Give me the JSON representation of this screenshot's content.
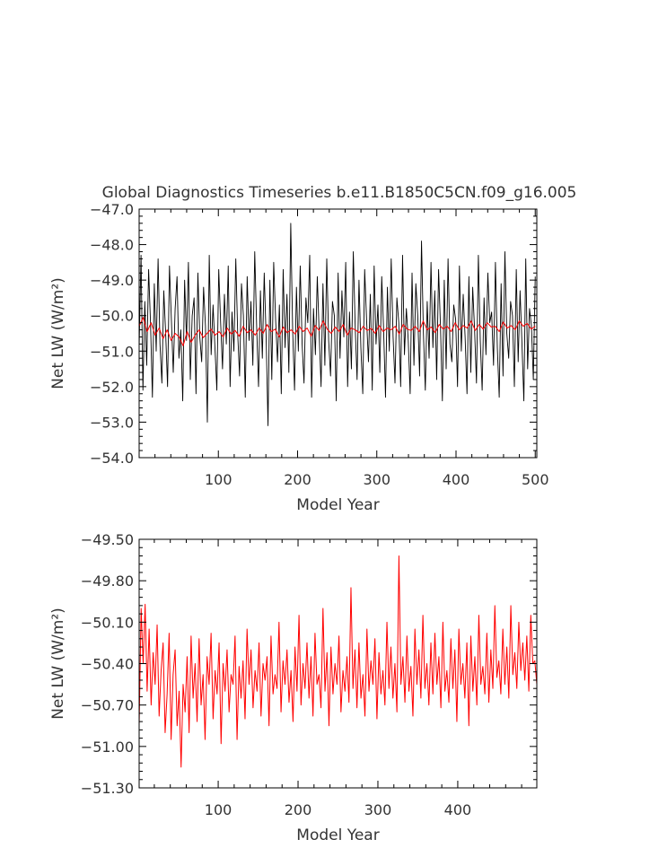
{
  "figure": {
    "title": "Global Diagnostics Timeseries b.e11.B1850C5CN.f09_g16.005"
  },
  "chart_data": [
    {
      "type": "line",
      "title": "Global Diagnostics Timeseries b.e11.B1850C5CN.f09_g16.005",
      "xlabel": "Model Year",
      "ylabel": "Net LW (W/m²)",
      "xlim": [
        0,
        502
      ],
      "ylim": [
        -54.0,
        -47.0
      ],
      "xticks": [
        100,
        200,
        300,
        400,
        500
      ],
      "xtick_labels": [
        "100",
        "200",
        "300",
        "400",
        "500"
      ],
      "yticks": [
        -54.0,
        -53.0,
        -52.0,
        -51.0,
        -50.0,
        -49.0,
        -48.0,
        -47.0
      ],
      "ytick_labels": [
        "−54.0",
        "−53.0",
        "−52.0",
        "−51.0",
        "−50.0",
        "−49.0",
        "−48.0",
        "−47.0"
      ],
      "grid": false,
      "legend": "none",
      "series": [
        {
          "color": "#000000",
          "kind": "monthly",
          "x_start": 0,
          "x_end": 500,
          "typical_range": [
            -52.2,
            -48.2
          ],
          "extremes": [
            -53.1,
            -47.4
          ],
          "values": [
            -50.9,
            -48.3,
            -52.1,
            -49.6,
            -51.4,
            -48.7,
            -50.2,
            -52.3,
            -49.1,
            -51.0,
            -48.4,
            -50.8,
            -51.9,
            -49.3,
            -50.5,
            -52.0,
            -48.6,
            -50.1,
            -51.6,
            -49.8,
            -48.9,
            -51.2,
            -50.4,
            -52.4,
            -49.0,
            -50.7,
            -48.5,
            -51.8,
            -50.0,
            -49.5,
            -52.2,
            -48.8,
            -50.6,
            -51.3,
            -49.2,
            -50.3,
            -53.0,
            -48.3,
            -51.1,
            -49.7,
            -50.9,
            -52.1,
            -48.7,
            -50.2,
            -51.5,
            -49.4,
            -50.8,
            -48.6,
            -52.0,
            -49.9,
            -51.0,
            -48.4,
            -50.5,
            -51.7,
            -49.1,
            -50.0,
            -52.3,
            -48.9,
            -50.7,
            -49.6,
            -51.4,
            -48.2,
            -50.3,
            -52.0,
            -49.3,
            -51.2,
            -48.8,
            -50.6,
            -53.1,
            -49.0,
            -51.8,
            -48.5,
            -50.1,
            -51.3,
            -49.7,
            -52.2,
            -48.7,
            -50.9,
            -49.4,
            -51.6,
            -47.4,
            -50.4,
            -52.1,
            -49.2,
            -51.0,
            -48.6,
            -50.8,
            -51.9,
            -49.5,
            -50.2,
            -48.3,
            -52.3,
            -49.8,
            -51.1,
            -48.9,
            -50.5,
            -52.0,
            -49.1,
            -51.4,
            -48.4,
            -50.7,
            -51.7,
            -49.6,
            -50.0,
            -52.4,
            -48.8,
            -51.2,
            -49.3,
            -50.6,
            -48.5,
            -52.0,
            -49.9,
            -51.5,
            -48.2,
            -50.3,
            -51.8,
            -49.0,
            -50.9,
            -52.2,
            -48.7,
            -50.1,
            -51.3,
            -49.4,
            -52.1,
            -48.6,
            -50.8,
            -49.7,
            -51.6,
            -48.9,
            -50.4,
            -52.3,
            -49.2,
            -51.0,
            -48.4,
            -50.6,
            -51.9,
            -49.5,
            -50.2,
            -52.0,
            -48.3,
            -51.1,
            -49.8,
            -50.7,
            -52.2,
            -48.8,
            -51.4,
            -49.1,
            -50.0,
            -51.7,
            -47.9,
            -50.5,
            -52.1,
            -49.6,
            -51.2,
            -48.5,
            -50.9,
            -49.3,
            -51.8,
            -48.7,
            -50.3,
            -52.4,
            -49.0,
            -51.5,
            -48.4,
            -50.8,
            -51.3,
            -49.7,
            -50.1,
            -52.0,
            -48.6,
            -51.0,
            -49.4,
            -50.6,
            -52.2,
            -48.9,
            -51.6,
            -49.2,
            -50.4,
            -51.9,
            -48.3,
            -50.7,
            -52.1,
            -49.5,
            -51.1,
            -48.8,
            -50.2,
            -49.9,
            -51.4,
            -48.5,
            -50.9,
            -52.3,
            -49.1,
            -51.7,
            -48.2,
            -50.5,
            -51.2,
            -49.6,
            -50.0,
            -52.0,
            -48.7,
            -51.3,
            -49.3,
            -50.8,
            -52.4,
            -48.4,
            -51.5,
            -49.8,
            -50.3,
            -51.8,
            -48.9
          ]
        },
        {
          "color": "#ff0000",
          "kind": "annual mean",
          "x_start": 0,
          "x_end": 500,
          "values": [
            -50.3,
            -50.05,
            -50.45,
            -50.2,
            -50.55,
            -50.35,
            -50.65,
            -50.4,
            -50.7,
            -50.5,
            -50.6,
            -50.85,
            -50.45,
            -50.75,
            -50.55,
            -50.4,
            -50.62,
            -50.5,
            -50.38,
            -50.55,
            -50.45,
            -50.6,
            -50.35,
            -50.52,
            -50.42,
            -50.58,
            -50.3,
            -50.48,
            -50.4,
            -50.55,
            -50.35,
            -50.5,
            -50.25,
            -50.45,
            -50.38,
            -50.6,
            -50.32,
            -50.48,
            -50.4,
            -50.52,
            -50.3,
            -50.45,
            -50.35,
            -50.58,
            -50.28,
            -50.42,
            -50.15,
            -50.38,
            -50.5,
            -50.32,
            -50.45,
            -50.25,
            -50.55,
            -50.35,
            -50.4,
            -50.48,
            -50.3,
            -50.42,
            -50.36,
            -50.5,
            -50.28,
            -50.45,
            -50.35,
            -50.4,
            -50.3,
            -50.52,
            -50.25,
            -50.38,
            -50.42,
            -50.3,
            -50.45,
            -50.15,
            -50.4,
            -50.32,
            -50.48,
            -50.25,
            -50.38,
            -50.3,
            -50.45,
            -50.2,
            -50.4,
            -50.28,
            -50.35,
            -50.15,
            -50.42,
            -50.25,
            -50.38,
            -50.2,
            -50.32,
            -50.3,
            -50.45,
            -50.18,
            -50.35,
            -50.28,
            -50.4,
            -50.15,
            -50.3,
            -50.22,
            -50.38,
            -50.3
          ]
        }
      ]
    },
    {
      "type": "line",
      "title": "",
      "xlabel": "Model Year",
      "ylabel": "Net LW (W/m²)",
      "xlim": [
        1,
        499
      ],
      "ylim": [
        -51.3,
        -49.5
      ],
      "xticks": [
        100,
        200,
        300,
        400
      ],
      "xtick_labels": [
        "100",
        "200",
        "300",
        "400"
      ],
      "yticks": [
        -51.3,
        -51.0,
        -50.7,
        -50.4,
        -50.1,
        -49.8,
        -49.5
      ],
      "ytick_labels": [
        "−51.30",
        "−51.00",
        "−50.70",
        "−50.40",
        "−50.10",
        "−49.80",
        "−49.50"
      ],
      "grid": false,
      "legend": "none",
      "series": [
        {
          "color": "#ff0000",
          "kind": "annual mean",
          "x_start": 1,
          "x_end": 499,
          "values": [
            -50.85,
            -50.0,
            -50.4,
            -49.97,
            -50.6,
            -50.15,
            -50.7,
            -50.32,
            -50.55,
            -50.12,
            -50.78,
            -50.45,
            -50.25,
            -50.9,
            -50.62,
            -50.18,
            -50.95,
            -50.48,
            -50.3,
            -50.85,
            -50.6,
            -51.15,
            -50.55,
            -50.75,
            -50.35,
            -50.9,
            -50.2,
            -50.65,
            -50.4,
            -50.82,
            -50.22,
            -50.7,
            -50.48,
            -50.95,
            -50.35,
            -50.55,
            -50.18,
            -50.8,
            -50.45,
            -50.62,
            -50.25,
            -50.98,
            -50.4,
            -50.6,
            -50.3,
            -50.75,
            -50.48,
            -50.55,
            -50.2,
            -50.95,
            -50.42,
            -50.65,
            -50.38,
            -50.8,
            -50.15,
            -50.55,
            -50.3,
            -50.72,
            -50.45,
            -50.6,
            -50.25,
            -50.78,
            -50.4,
            -50.52,
            -50.35,
            -50.85,
            -50.2,
            -50.62,
            -50.48,
            -50.58,
            -50.1,
            -50.75,
            -50.38,
            -50.55,
            -50.3,
            -50.68,
            -50.45,
            -50.82,
            -50.28,
            -50.6,
            -50.05,
            -50.7,
            -50.4,
            -50.58,
            -50.25,
            -50.65,
            -50.35,
            -50.78,
            -50.18,
            -50.55,
            -50.48,
            -50.72,
            -50.0,
            -50.6,
            -50.32,
            -50.85,
            -50.28,
            -50.62,
            -50.4,
            -50.55,
            -50.2,
            -50.75,
            -50.45,
            -50.6,
            -50.35,
            -50.68,
            -49.85,
            -50.58,
            -50.3,
            -50.72,
            -50.25,
            -50.65,
            -50.48,
            -50.78,
            -50.15,
            -50.6,
            -50.38,
            -50.55,
            -50.22,
            -50.8,
            -50.32,
            -50.62,
            -50.45,
            -50.7,
            -50.1,
            -50.58,
            -50.28,
            -50.65,
            -50.4,
            -50.75,
            -49.62,
            -50.55,
            -50.35,
            -50.68,
            -50.2,
            -50.6,
            -50.42,
            -50.78,
            -50.15,
            -50.55,
            -50.3,
            -50.65,
            -50.05,
            -50.58,
            -50.4,
            -50.7,
            -50.25,
            -50.62,
            -50.18,
            -50.55,
            -50.35,
            -50.72,
            -50.1,
            -50.6,
            -50.45,
            -50.68,
            -50.22,
            -50.58,
            -50.3,
            -50.82,
            -50.15,
            -50.55,
            -50.4,
            -50.65,
            -50.25,
            -50.85,
            -50.2,
            -50.6,
            -50.35,
            -50.7,
            -50.05,
            -50.55,
            -50.42,
            -50.62,
            -50.18,
            -50.68,
            -50.3,
            -50.58,
            -49.98,
            -50.5,
            -50.38,
            -50.62,
            -50.15,
            -50.55,
            -50.28,
            -50.65,
            -49.98,
            -50.48,
            -50.32,
            -50.58,
            -50.1,
            -50.45,
            -50.25,
            -50.52,
            -50.2,
            -50.6,
            -50.05,
            -50.4,
            -50.38,
            -50.55
          ]
        }
      ]
    }
  ]
}
